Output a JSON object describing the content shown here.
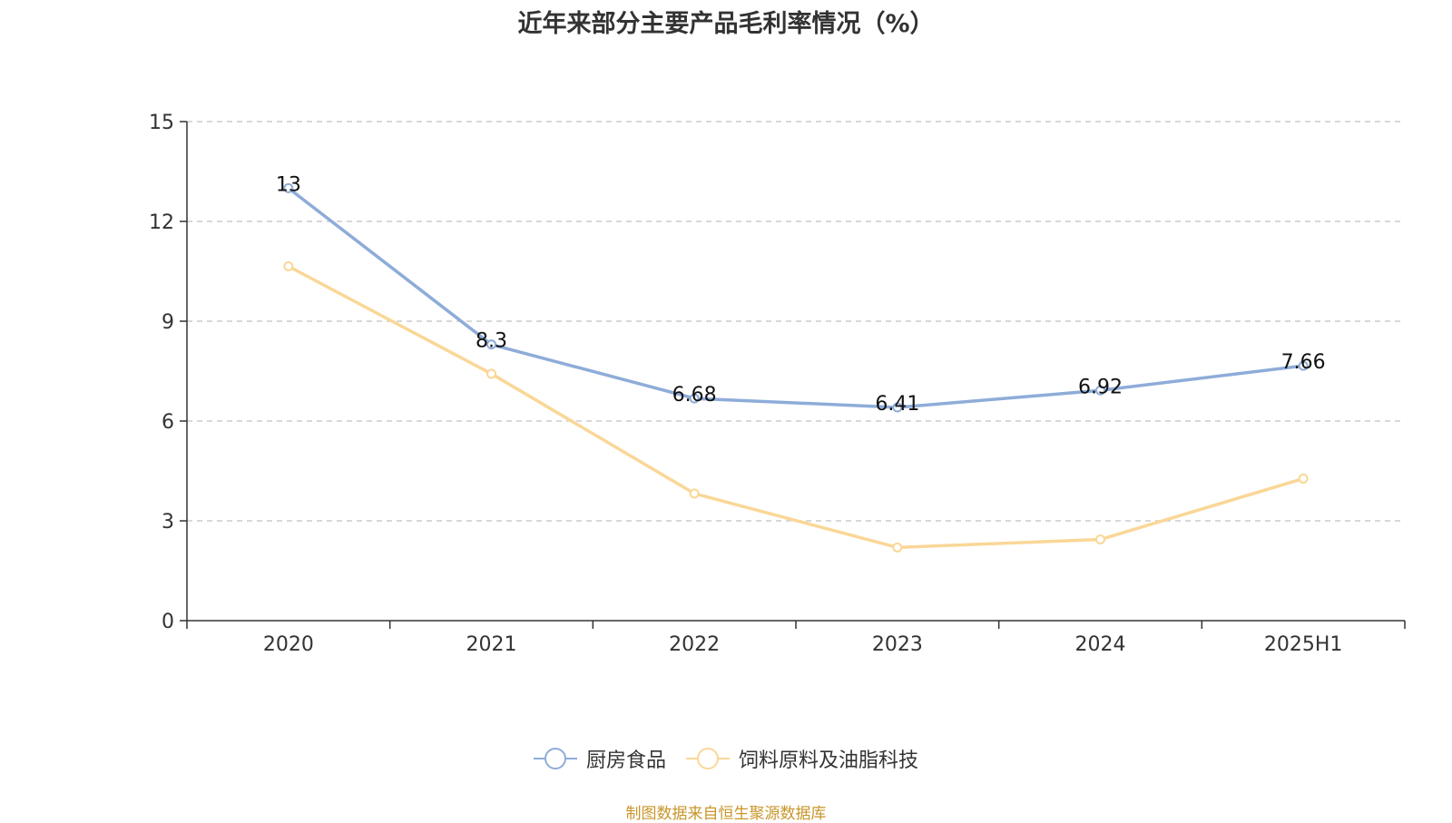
{
  "title": "近年来部分主要产品毛利率情况（%）",
  "source": "制图数据来自恒生聚源数据库",
  "chart_data": {
    "type": "line",
    "title": "近年来部分主要产品毛利率情况（%）",
    "categories": [
      "2020",
      "2021",
      "2022",
      "2023",
      "2024",
      "2025H1"
    ],
    "ylim": [
      0,
      15
    ],
    "yticks": [
      0,
      3,
      6,
      9,
      12,
      15
    ],
    "grid": true,
    "legend_position": "bottom",
    "series": [
      {
        "name": "厨房食品",
        "color": "#8eacd8",
        "values": [
          13,
          8.3,
          6.68,
          6.41,
          6.92,
          7.66
        ],
        "labels": [
          "13",
          "8.3",
          "6.68",
          "6.41",
          "6.92",
          "7.66"
        ]
      },
      {
        "name": "饲料原料及油脂科技",
        "color": "#fad797",
        "values": [
          10.65,
          7.42,
          3.82,
          2.2,
          2.44,
          4.27
        ]
      }
    ]
  }
}
